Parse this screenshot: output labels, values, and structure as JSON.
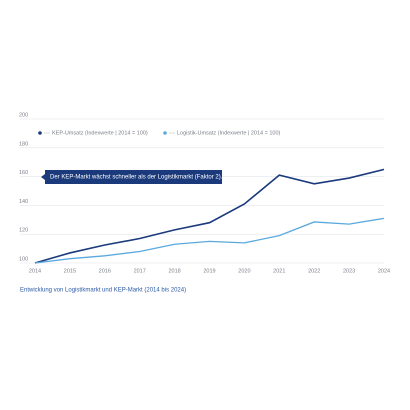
{
  "chart_data": {
    "type": "line",
    "caption": "Entwicklung von Logistikmarkt und KEP-Markt (2014 bis 2024)",
    "annotation": "Der KEP-Markt wächst schneller als der Logistikmarkt (Faktor 2).",
    "categories": [
      "2014",
      "2015",
      "2016",
      "2017",
      "2018",
      "2019",
      "2020",
      "2021",
      "2022",
      "2023",
      "2024"
    ],
    "series": [
      {
        "name": "KEP-Umsatz (Indexwerte | 2014 = 100)",
        "color": "#1b3a7c",
        "values": [
          100,
          107,
          112.5,
          117,
          123,
          128,
          141,
          161,
          155,
          159,
          165
        ]
      },
      {
        "name": "Logistik-Umsatz (Indexwerte | 2014 = 100)",
        "color": "#5aa9de",
        "values": [
          100,
          103,
          105,
          108,
          113,
          115,
          114,
          119,
          128.5,
          127,
          131
        ]
      }
    ],
    "ylim": [
      100,
      200
    ],
    "yticks": [
      100,
      120,
      140,
      160,
      180,
      200
    ],
    "grid": true
  }
}
